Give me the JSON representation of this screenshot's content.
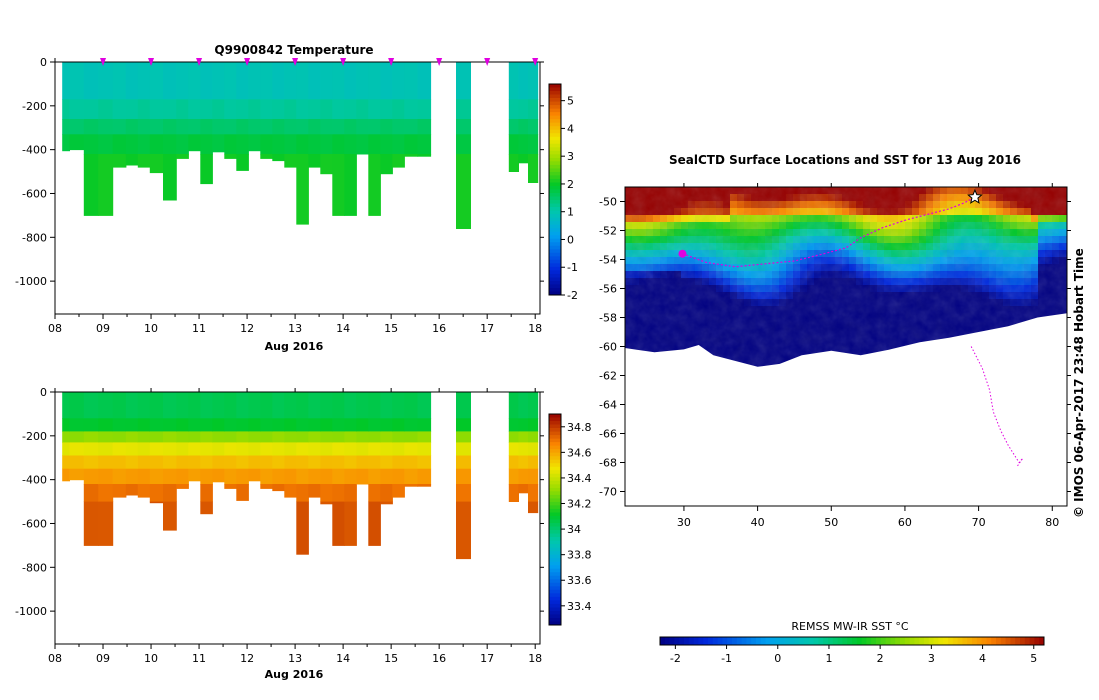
{
  "chart_data": [
    {
      "type": "heatmap",
      "id": "temperature_section",
      "title": "Q9900842  Temperature",
      "xlabel": "Aug 2016",
      "x_ticks": [
        "08",
        "09",
        "10",
        "11",
        "12",
        "13",
        "14",
        "15",
        "16",
        "17",
        "18"
      ],
      "y_ticks": [
        "0",
        "-200",
        "-400",
        "-600",
        "-800",
        "-1000"
      ],
      "ylim": [
        -1150,
        0
      ],
      "xlim": [
        8.0,
        18.1
      ],
      "colorbar": {
        "min": -2,
        "max": 5.6,
        "ticks": [
          "-2",
          "-1",
          "0",
          "1",
          "2",
          "3",
          "4",
          "5"
        ]
      },
      "profile_markers_x": [
        9.0,
        10.0,
        11.0,
        12.0,
        13.0,
        14.0,
        15.0,
        16.0,
        17.0,
        18.0
      ],
      "profiles": [
        {
          "t": 8.15,
          "depth": 405
        },
        {
          "t": 8.45,
          "depth": 400
        },
        {
          "t": 8.75,
          "depth": 700
        },
        {
          "t": 9.05,
          "depth": 700
        },
        {
          "t": 9.35,
          "depth": 480
        },
        {
          "t": 9.6,
          "depth": 470
        },
        {
          "t": 9.85,
          "depth": 480
        },
        {
          "t": 10.1,
          "depth": 505
        },
        {
          "t": 10.4,
          "depth": 630
        },
        {
          "t": 10.65,
          "depth": 440
        },
        {
          "t": 10.9,
          "depth": 405
        },
        {
          "t": 11.15,
          "depth": 555
        },
        {
          "t": 11.4,
          "depth": 410
        },
        {
          "t": 11.65,
          "depth": 440
        },
        {
          "t": 11.9,
          "depth": 495
        },
        {
          "t": 12.15,
          "depth": 405
        },
        {
          "t": 12.4,
          "depth": 440
        },
        {
          "t": 12.65,
          "depth": 450
        },
        {
          "t": 12.9,
          "depth": 480
        },
        {
          "t": 13.15,
          "depth": 740
        },
        {
          "t": 13.4,
          "depth": 480
        },
        {
          "t": 13.65,
          "depth": 510
        },
        {
          "t": 13.9,
          "depth": 700
        },
        {
          "t": 14.15,
          "depth": 700
        },
        {
          "t": 14.4,
          "depth": 420
        },
        {
          "t": 14.65,
          "depth": 700
        },
        {
          "t": 14.9,
          "depth": 510
        },
        {
          "t": 15.15,
          "depth": 480
        },
        {
          "t": 15.4,
          "depth": 430
        },
        {
          "t": 15.7,
          "depth": 430
        },
        {
          "t": 16.5,
          "depth": 760
        },
        {
          "t": 17.55,
          "depth": 500
        },
        {
          "t": 17.75,
          "depth": 460
        },
        {
          "t": 17.95,
          "depth": 550
        }
      ],
      "layers": [
        {
          "to_depth": 170,
          "value": 0.9
        },
        {
          "to_depth": 260,
          "value": 1.15
        },
        {
          "to_depth": 330,
          "value": 1.5
        },
        {
          "to_depth": 420,
          "value": 1.8
        },
        {
          "to_depth": 2000,
          "value": 2.05
        }
      ]
    },
    {
      "type": "heatmap",
      "id": "salinity_section",
      "title": "",
      "xlabel": "Aug 2016",
      "x_ticks": [
        "08",
        "09",
        "10",
        "11",
        "12",
        "13",
        "14",
        "15",
        "16",
        "17",
        "18"
      ],
      "y_ticks": [
        "0",
        "-200",
        "-400",
        "-600",
        "-800",
        "-1000"
      ],
      "ylim": [
        -1150,
        0
      ],
      "xlim": [
        8.0,
        18.1
      ],
      "colorbar": {
        "min": 33.25,
        "max": 34.9,
        "ticks": [
          "33.4",
          "33.6",
          "33.8",
          "34",
          "34.2",
          "34.4",
          "34.6",
          "34.8"
        ]
      },
      "layers": [
        {
          "to_depth": 120,
          "value": 34.05
        },
        {
          "to_depth": 180,
          "value": 34.1
        },
        {
          "to_depth": 230,
          "value": 34.3
        },
        {
          "to_depth": 290,
          "value": 34.45
        },
        {
          "to_depth": 350,
          "value": 34.55
        },
        {
          "to_depth": 420,
          "value": 34.62
        },
        {
          "to_depth": 500,
          "value": 34.7
        },
        {
          "to_depth": 2000,
          "value": 34.75
        }
      ]
    },
    {
      "type": "heatmap",
      "id": "sst_map",
      "title": "SealCTD Surface Locations and SST for 13 Aug 2016",
      "x_ticks": [
        "30",
        "40",
        "50",
        "60",
        "70",
        "80"
      ],
      "y_ticks": [
        "-50",
        "-52",
        "-54",
        "-56",
        "-58",
        "-60",
        "-62",
        "-64",
        "-66",
        "-68",
        "-70"
      ],
      "xlim": [
        22,
        82
      ],
      "ylim": [
        -71,
        -49
      ],
      "colorbar_label": "REMSS MW-IR SST °C",
      "colorbar": {
        "min": -2.3,
        "max": 5.2,
        "ticks": [
          "-2",
          "-1",
          "0",
          "1",
          "2",
          "3",
          "4",
          "5"
        ]
      },
      "side_label": "©  IMOS 06-Apr-2017 23:48 Hobart Time",
      "track": [
        [
          29.8,
          -53.6
        ],
        [
          33,
          -54.2
        ],
        [
          37,
          -54.5
        ],
        [
          41,
          -54.3
        ],
        [
          45,
          -54.1
        ],
        [
          49,
          -53.6
        ],
        [
          52,
          -53.2
        ],
        [
          54,
          -52.5
        ],
        [
          57,
          -51.8
        ],
        [
          60,
          -51.3
        ],
        [
          63,
          -50.9
        ],
        [
          66,
          -50.5
        ],
        [
          68,
          -50.1
        ],
        [
          69.5,
          -49.7
        ]
      ],
      "track_south": [
        [
          69.0,
          -60.0
        ],
        [
          70.5,
          -61.5
        ],
        [
          71.5,
          -63.0
        ],
        [
          72.0,
          -64.5
        ],
        [
          73.0,
          -65.8
        ],
        [
          74.0,
          -66.8
        ],
        [
          75.0,
          -67.6
        ],
        [
          75.5,
          -68.0
        ],
        [
          76.0,
          -67.7
        ],
        [
          75.2,
          -68.3
        ]
      ]
    }
  ]
}
